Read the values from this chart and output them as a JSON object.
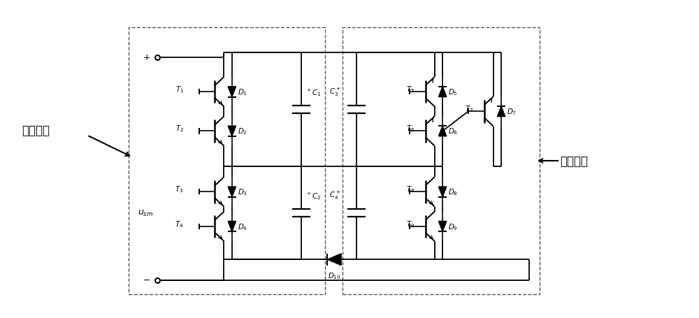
{
  "fig_width": 10.0,
  "fig_height": 4.56,
  "dpi": 100,
  "bg_color": "white",
  "lc": "black",
  "lw": 1.2,
  "label_left": "左半部分",
  "label_right": "右半部分"
}
